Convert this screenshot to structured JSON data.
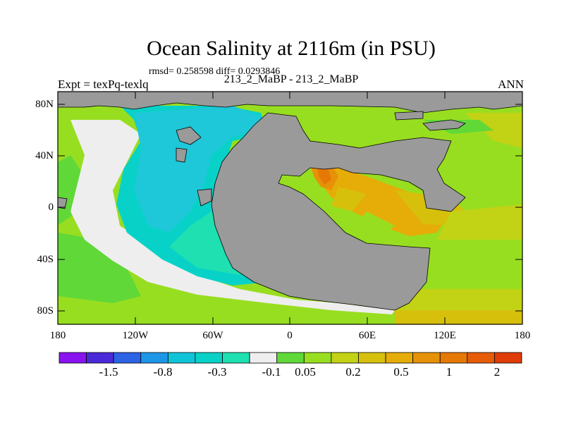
{
  "title": "Ocean Salinity at 2116m (in PSU)",
  "stats": "rmsd= 0.258598 diff= 0.0293846",
  "cases": "213_2_MaBP - 213_2_MaBP",
  "expt": "Expt = texPq-texlq",
  "season": "ANN",
  "y_ticks": [
    "80N",
    "40N",
    "0",
    "40S",
    "80S"
  ],
  "x_ticks": [
    "180",
    "120W",
    "60W",
    "0",
    "60E",
    "120E",
    "180"
  ],
  "colorbar": {
    "labels": [
      "-1.5",
      "-0.8",
      "-0.3",
      "-0.1",
      "0.05",
      "0.2",
      "0.5",
      "1",
      "2"
    ],
    "colors": [
      "#8a14f0",
      "#4a2ad8",
      "#2b62e6",
      "#1e96e8",
      "#10c4d8",
      "#08d2c8",
      "#1ee0b0",
      "#eeeeee",
      "#60d838",
      "#98de20",
      "#c2d214",
      "#d6c00c",
      "#e6ac08",
      "#e69208",
      "#e67806",
      "#e65c06",
      "#e03c08"
    ]
  },
  "colors": {
    "land": "#9a9a9a",
    "coastline": "#000000"
  }
}
